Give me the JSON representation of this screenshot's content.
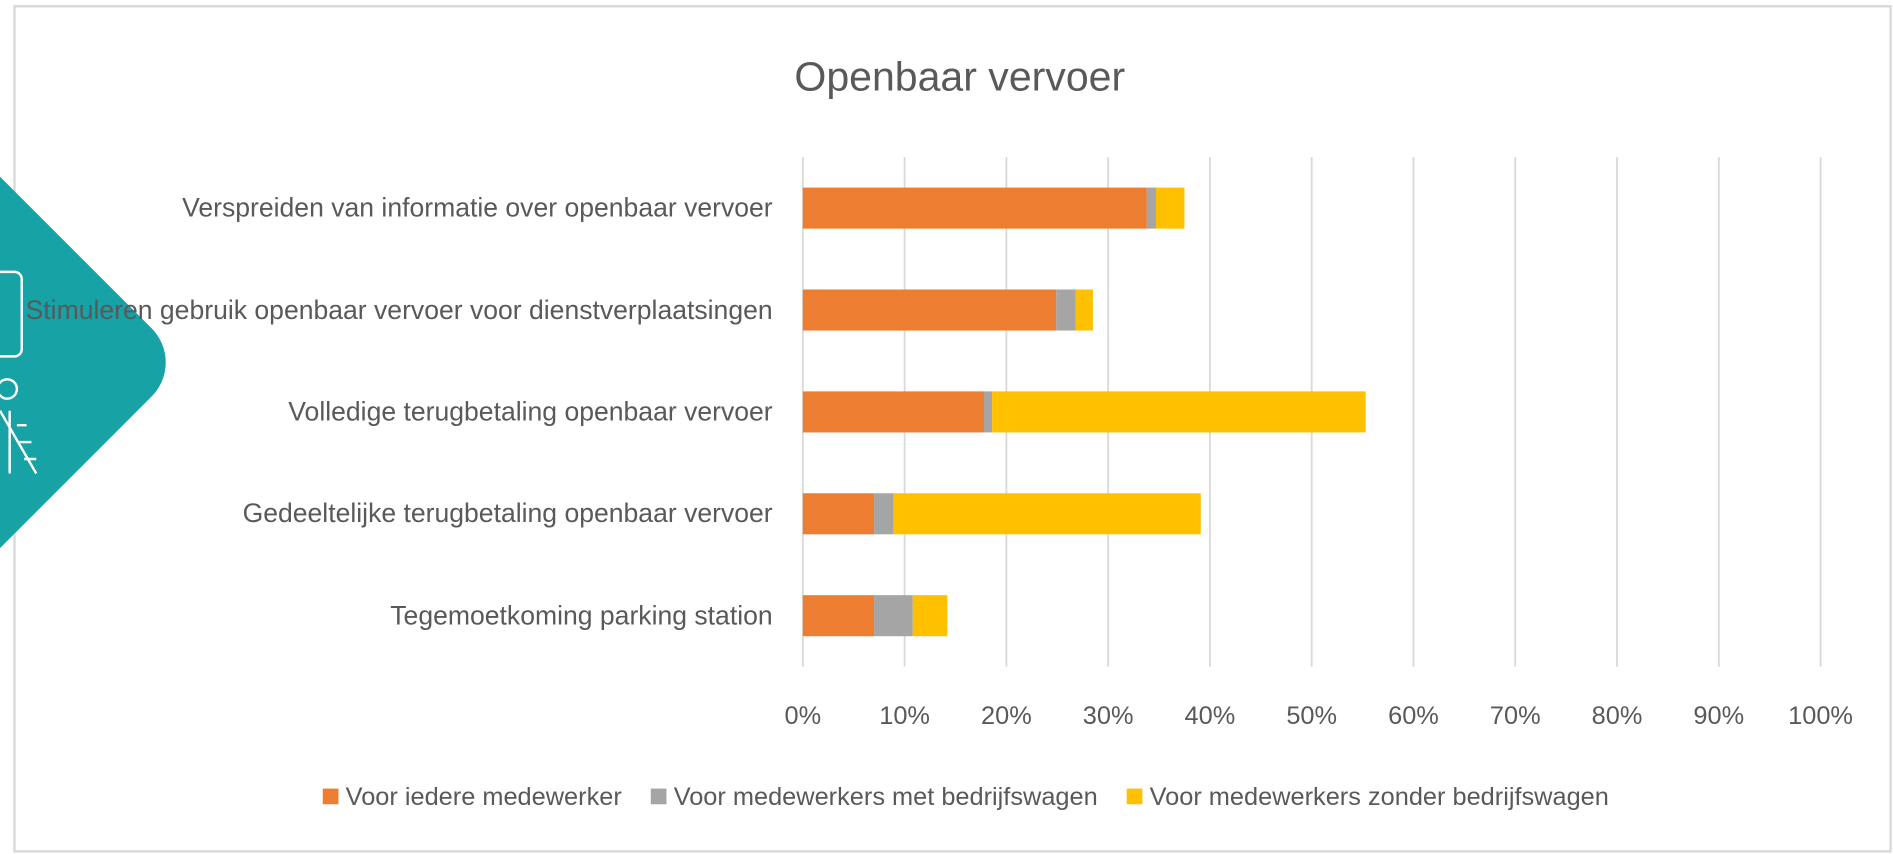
{
  "chart_data": {
    "type": "bar",
    "orientation": "horizontal",
    "stacked": true,
    "title": "Openbaar vervoer",
    "categories": [
      "Verspreiden van informatie over openbaar vervoer",
      "Stimuleren gebruik openbaar vervoer voor dienstverplaatsingen",
      "Volledige terugbetaling openbaar vervoer",
      "Gedeeltelijke terugbetaling openbaar vervoer",
      "Tegemoetkoming parking station"
    ],
    "series": [
      {
        "name": "Voor iedere medewerker",
        "color": "#ed7d31",
        "values": [
          33.8,
          24.9,
          17.8,
          7.0,
          7.0
        ]
      },
      {
        "name": "Voor medewerkers met bedrijfswagen",
        "color": "#a5a5a5",
        "values": [
          0.9,
          1.9,
          0.8,
          1.9,
          3.8
        ]
      },
      {
        "name": "Voor medewerkers zonder bedrijfswagen",
        "color": "#ffc000",
        "values": [
          2.8,
          1.7,
          36.7,
          30.2,
          3.4
        ]
      }
    ],
    "xlim": [
      0,
      100
    ],
    "xticks": [
      {
        "value": 0,
        "label": "0%"
      },
      {
        "value": 10,
        "label": "10%"
      },
      {
        "value": 20,
        "label": "20%"
      },
      {
        "value": 30,
        "label": "30%"
      },
      {
        "value": 40,
        "label": "40%"
      },
      {
        "value": 50,
        "label": "50%"
      },
      {
        "value": 60,
        "label": "60%"
      },
      {
        "value": 70,
        "label": "70%"
      },
      {
        "value": 80,
        "label": "80%"
      },
      {
        "value": 90,
        "label": "90%"
      },
      {
        "value": 100,
        "label": "100%"
      }
    ],
    "grid": true,
    "legend": "bottom"
  }
}
